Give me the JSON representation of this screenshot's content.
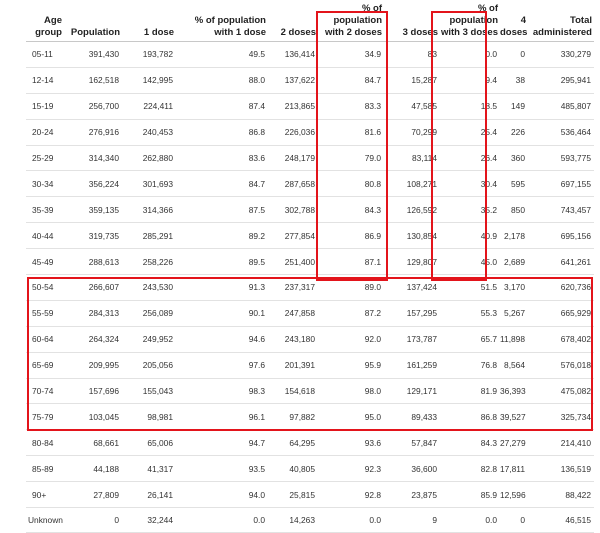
{
  "headers": [
    "Age group",
    "Population",
    "1 dose",
    "% of population with 1 dose",
    "2 doses",
    "% of population with 2 doses",
    "3 doses",
    "% of population with 3 doses",
    "4 doses",
    "Total administered"
  ],
  "rows": [
    [
      "05-11",
      "391,430",
      "193,782",
      "49.5",
      "136,414",
      "34.9",
      "83",
      "0.0",
      "0",
      "330,279"
    ],
    [
      "12-14",
      "162,518",
      "142,995",
      "88.0",
      "137,622",
      "84.7",
      "15,287",
      "9.4",
      "38",
      "295,941"
    ],
    [
      "15-19",
      "256,700",
      "224,411",
      "87.4",
      "213,865",
      "83.3",
      "47,585",
      "18.5",
      "149",
      "485,807"
    ],
    [
      "20-24",
      "276,916",
      "240,453",
      "86.8",
      "226,036",
      "81.6",
      "70,299",
      "25.4",
      "226",
      "536,464"
    ],
    [
      "25-29",
      "314,340",
      "262,880",
      "83.6",
      "248,179",
      "79.0",
      "83,114",
      "26.4",
      "360",
      "593,775"
    ],
    [
      "30-34",
      "356,224",
      "301,693",
      "84.7",
      "287,658",
      "80.8",
      "108,271",
      "30.4",
      "595",
      "697,155"
    ],
    [
      "35-39",
      "359,135",
      "314,366",
      "87.5",
      "302,788",
      "84.3",
      "126,592",
      "35.2",
      "850",
      "743,457"
    ],
    [
      "40-44",
      "319,735",
      "285,291",
      "89.2",
      "277,854",
      "86.9",
      "130,854",
      "40.9",
      "2,178",
      "695,156"
    ],
    [
      "45-49",
      "288,613",
      "258,226",
      "89.5",
      "251,400",
      "87.1",
      "129,807",
      "45.0",
      "2,689",
      "641,261"
    ],
    [
      "50-54",
      "266,607",
      "243,530",
      "91.3",
      "237,317",
      "89.0",
      "137,424",
      "51.5",
      "3,170",
      "620,736"
    ],
    [
      "55-59",
      "284,313",
      "256,089",
      "90.1",
      "247,858",
      "87.2",
      "157,295",
      "55.3",
      "5,267",
      "665,929"
    ],
    [
      "60-64",
      "264,324",
      "249,952",
      "94.6",
      "243,180",
      "92.0",
      "173,787",
      "65.7",
      "11,898",
      "678,402"
    ],
    [
      "65-69",
      "209,995",
      "205,056",
      "97.6",
      "201,391",
      "95.9",
      "161,259",
      "76.8",
      "8,564",
      "576,018"
    ],
    [
      "70-74",
      "157,696",
      "155,043",
      "98.3",
      "154,618",
      "98.0",
      "129,171",
      "81.9",
      "36,393",
      "475,082"
    ],
    [
      "75-79",
      "103,045",
      "98,981",
      "96.1",
      "97,882",
      "95.0",
      "89,433",
      "86.8",
      "39,527",
      "325,734"
    ],
    [
      "80-84",
      "68,661",
      "65,006",
      "94.7",
      "64,295",
      "93.6",
      "57,847",
      "84.3",
      "27,279",
      "214,410"
    ],
    [
      "85-89",
      "44,188",
      "41,317",
      "93.5",
      "40,805",
      "92.3",
      "36,600",
      "82.8",
      "17,811",
      "136,519"
    ],
    [
      "90+",
      "27,809",
      "26,141",
      "94.0",
      "25,815",
      "92.8",
      "23,875",
      "85.9",
      "12,596",
      "88,422"
    ],
    [
      "Unknown",
      "0",
      "32,244",
      "0.0",
      "14,263",
      "0.0",
      "9",
      "0.0",
      "0",
      "46,515"
    ]
  ]
}
